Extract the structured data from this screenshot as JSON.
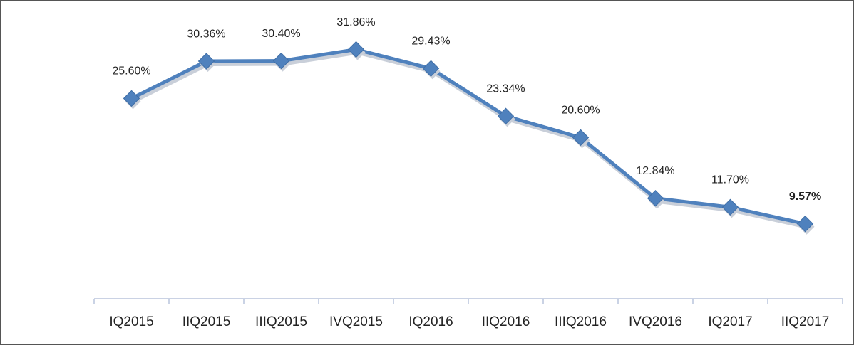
{
  "chart_data": {
    "type": "line",
    "categories": [
      "IQ2015",
      "IIQ2015",
      "IIIQ2015",
      "IVQ2015",
      "IQ2016",
      "IIQ2016",
      "IIIQ2016",
      "IVQ2016",
      "IQ2017",
      "IIQ2017"
    ],
    "values": [
      25.6,
      30.36,
      30.4,
      31.86,
      29.43,
      23.34,
      20.6,
      12.84,
      11.7,
      9.57
    ],
    "value_labels": [
      "25.60%",
      "30.36%",
      "30.40%",
      "31.86%",
      "29.43%",
      "23.34%",
      "20.60%",
      "12.84%",
      "11.70%",
      "9.57%"
    ],
    "color": "#4f81bd",
    "ylim": [
      0,
      36
    ]
  }
}
